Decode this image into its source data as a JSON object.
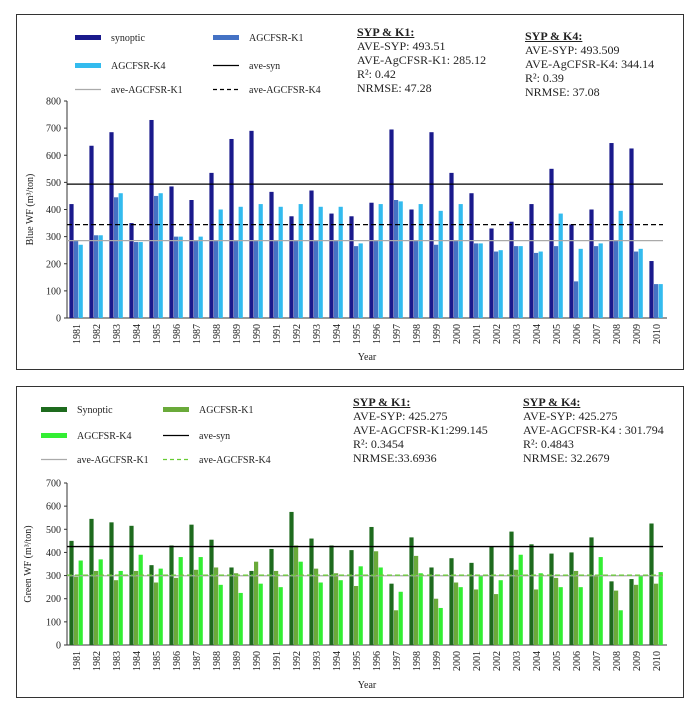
{
  "charts": [
    {
      "id": "blue",
      "colors": {
        "synoptic": "#1a1a8c",
        "k1": "#4472c4",
        "k4": "#33bbee",
        "ave_syn": "#000000",
        "ave_k1": "#aaaaaa",
        "ave_k4": "#000000"
      },
      "legend": {
        "synoptic": "synoptic",
        "k1": "AGCFSR-K1",
        "k4": "AGCFSR-K4",
        "ave_syn": "ave-syn",
        "ave_k1": "ave-AGCFSR-K1",
        "ave_k4": "ave-AGCFSR-K4"
      },
      "stats_k1": {
        "title": "SYP & K1:",
        "lines": [
          "AVE-SYP: 493.51",
          "AVE-AgCFSR-K1: 285.12",
          "R²:  0.42",
          "NRMSE: 47.28"
        ]
      },
      "stats_k4": {
        "title": "SYP & K4:",
        "lines": [
          "AVE-SYP: 493.509",
          "AVE-AgCFSR-K4:  344.14",
          "R²:  0.39",
          "NRMSE:  37.08"
        ]
      }
    },
    {
      "id": "green",
      "colors": {
        "synoptic": "#1e6b1e",
        "k1": "#6aaa3a",
        "k4": "#33ee33",
        "ave_syn": "#000000",
        "ave_k1": "#aaaaaa",
        "ave_k4": "#66cc33"
      },
      "legend": {
        "synoptic": "Synoptic",
        "k1": "AGCFSR-K1",
        "k4": "AGCFSR-K4",
        "ave_syn": "ave-syn",
        "ave_k1": "ave-AGCFSR-K1",
        "ave_k4": "ave-AGCFSR-K4"
      },
      "stats_k1": {
        "title": "SYP & K1:",
        "lines": [
          "AVE-SYP: 425.275",
          "AVE-AGCFSR-K1:299.145",
          "R²: 0.3454",
          "NRMSE:33.6936"
        ]
      },
      "stats_k4": {
        "title": "SYP & K4:",
        "lines": [
          "AVE-SYP: 425.275",
          "AVE-AGCFSR-K4 : 301.794",
          "R²: 0.4843",
          "NRMSE: 32.2679"
        ]
      }
    }
  ],
  "chart_data": [
    {
      "type": "bar",
      "title": "",
      "xlabel": "Year",
      "ylabel": "Blue WF (m³/ton)",
      "ylim": [
        0,
        800
      ],
      "yticks": [
        0,
        100,
        200,
        300,
        400,
        500,
        600,
        700,
        800
      ],
      "categories": [
        "1981",
        "1982",
        "1983",
        "1984",
        "1985",
        "1986",
        "1987",
        "1988",
        "1989",
        "1990",
        "1991",
        "1992",
        "1993",
        "1994",
        "1995",
        "1996",
        "1997",
        "1998",
        "1999",
        "2000",
        "2001",
        "2002",
        "2003",
        "2004",
        "2005",
        "2006",
        "2007",
        "2008",
        "2009",
        "2010"
      ],
      "series": [
        {
          "name": "synoptic",
          "values": [
            420,
            635,
            685,
            350,
            730,
            485,
            435,
            535,
            660,
            690,
            465,
            375,
            470,
            385,
            375,
            425,
            695,
            400,
            685,
            535,
            460,
            330,
            355,
            420,
            550,
            345,
            400,
            645,
            625,
            210
          ]
        },
        {
          "name": "AGCFSR-K1",
          "values": [
            285,
            305,
            445,
            280,
            450,
            300,
            285,
            285,
            285,
            285,
            285,
            285,
            285,
            285,
            265,
            285,
            435,
            285,
            270,
            285,
            275,
            245,
            265,
            240,
            265,
            135,
            265,
            285,
            245,
            125
          ]
        },
        {
          "name": "AGCFSR-K4",
          "values": [
            270,
            305,
            460,
            280,
            460,
            300,
            300,
            400,
            410,
            420,
            410,
            420,
            410,
            410,
            275,
            420,
            430,
            420,
            395,
            420,
            275,
            250,
            265,
            245,
            385,
            255,
            275,
            395,
            255,
            125
          ]
        }
      ],
      "reference_lines": [
        {
          "name": "ave-syn",
          "value": 493.51
        },
        {
          "name": "ave-AGCFSR-K1",
          "value": 285.12
        },
        {
          "name": "ave-AGCFSR-K4",
          "value": 344.14
        }
      ]
    },
    {
      "type": "bar",
      "title": "",
      "xlabel": "Year",
      "ylabel": "Green WF (m³/ton)",
      "ylim": [
        0,
        700
      ],
      "yticks": [
        0,
        100,
        200,
        300,
        400,
        500,
        600,
        700
      ],
      "categories": [
        "1981",
        "1982",
        "1983",
        "1984",
        "1985",
        "1986",
        "1987",
        "1988",
        "1989",
        "1990",
        "1991",
        "1992",
        "1993",
        "1994",
        "1995",
        "1996",
        "1997",
        "1998",
        "1999",
        "2000",
        "2001",
        "2002",
        "2003",
        "2004",
        "2005",
        "2006",
        "2007",
        "2008",
        "2009",
        "2010"
      ],
      "series": [
        {
          "name": "Synoptic",
          "values": [
            450,
            545,
            530,
            515,
            345,
            430,
            520,
            455,
            335,
            320,
            415,
            575,
            460,
            430,
            410,
            510,
            265,
            465,
            335,
            375,
            355,
            425,
            490,
            435,
            395,
            400,
            465,
            275,
            285,
            525
          ]
        },
        {
          "name": "AGCFSR-K1",
          "values": [
            295,
            320,
            280,
            320,
            270,
            290,
            325,
            335,
            310,
            360,
            320,
            430,
            330,
            310,
            255,
            405,
            150,
            385,
            200,
            270,
            240,
            220,
            325,
            240,
            290,
            320,
            300,
            235,
            260,
            265
          ]
        },
        {
          "name": "AGCFSR-K4",
          "values": [
            365,
            370,
            320,
            390,
            330,
            380,
            380,
            260,
            225,
            265,
            250,
            360,
            270,
            280,
            340,
            335,
            230,
            310,
            160,
            250,
            300,
            280,
            390,
            310,
            250,
            250,
            380,
            150,
            300,
            315
          ]
        }
      ],
      "reference_lines": [
        {
          "name": "ave-syn",
          "value": 425.275
        },
        {
          "name": "ave-AGCFSR-K1",
          "value": 299.145
        },
        {
          "name": "ave-AGCFSR-K4",
          "value": 301.794
        }
      ]
    }
  ]
}
